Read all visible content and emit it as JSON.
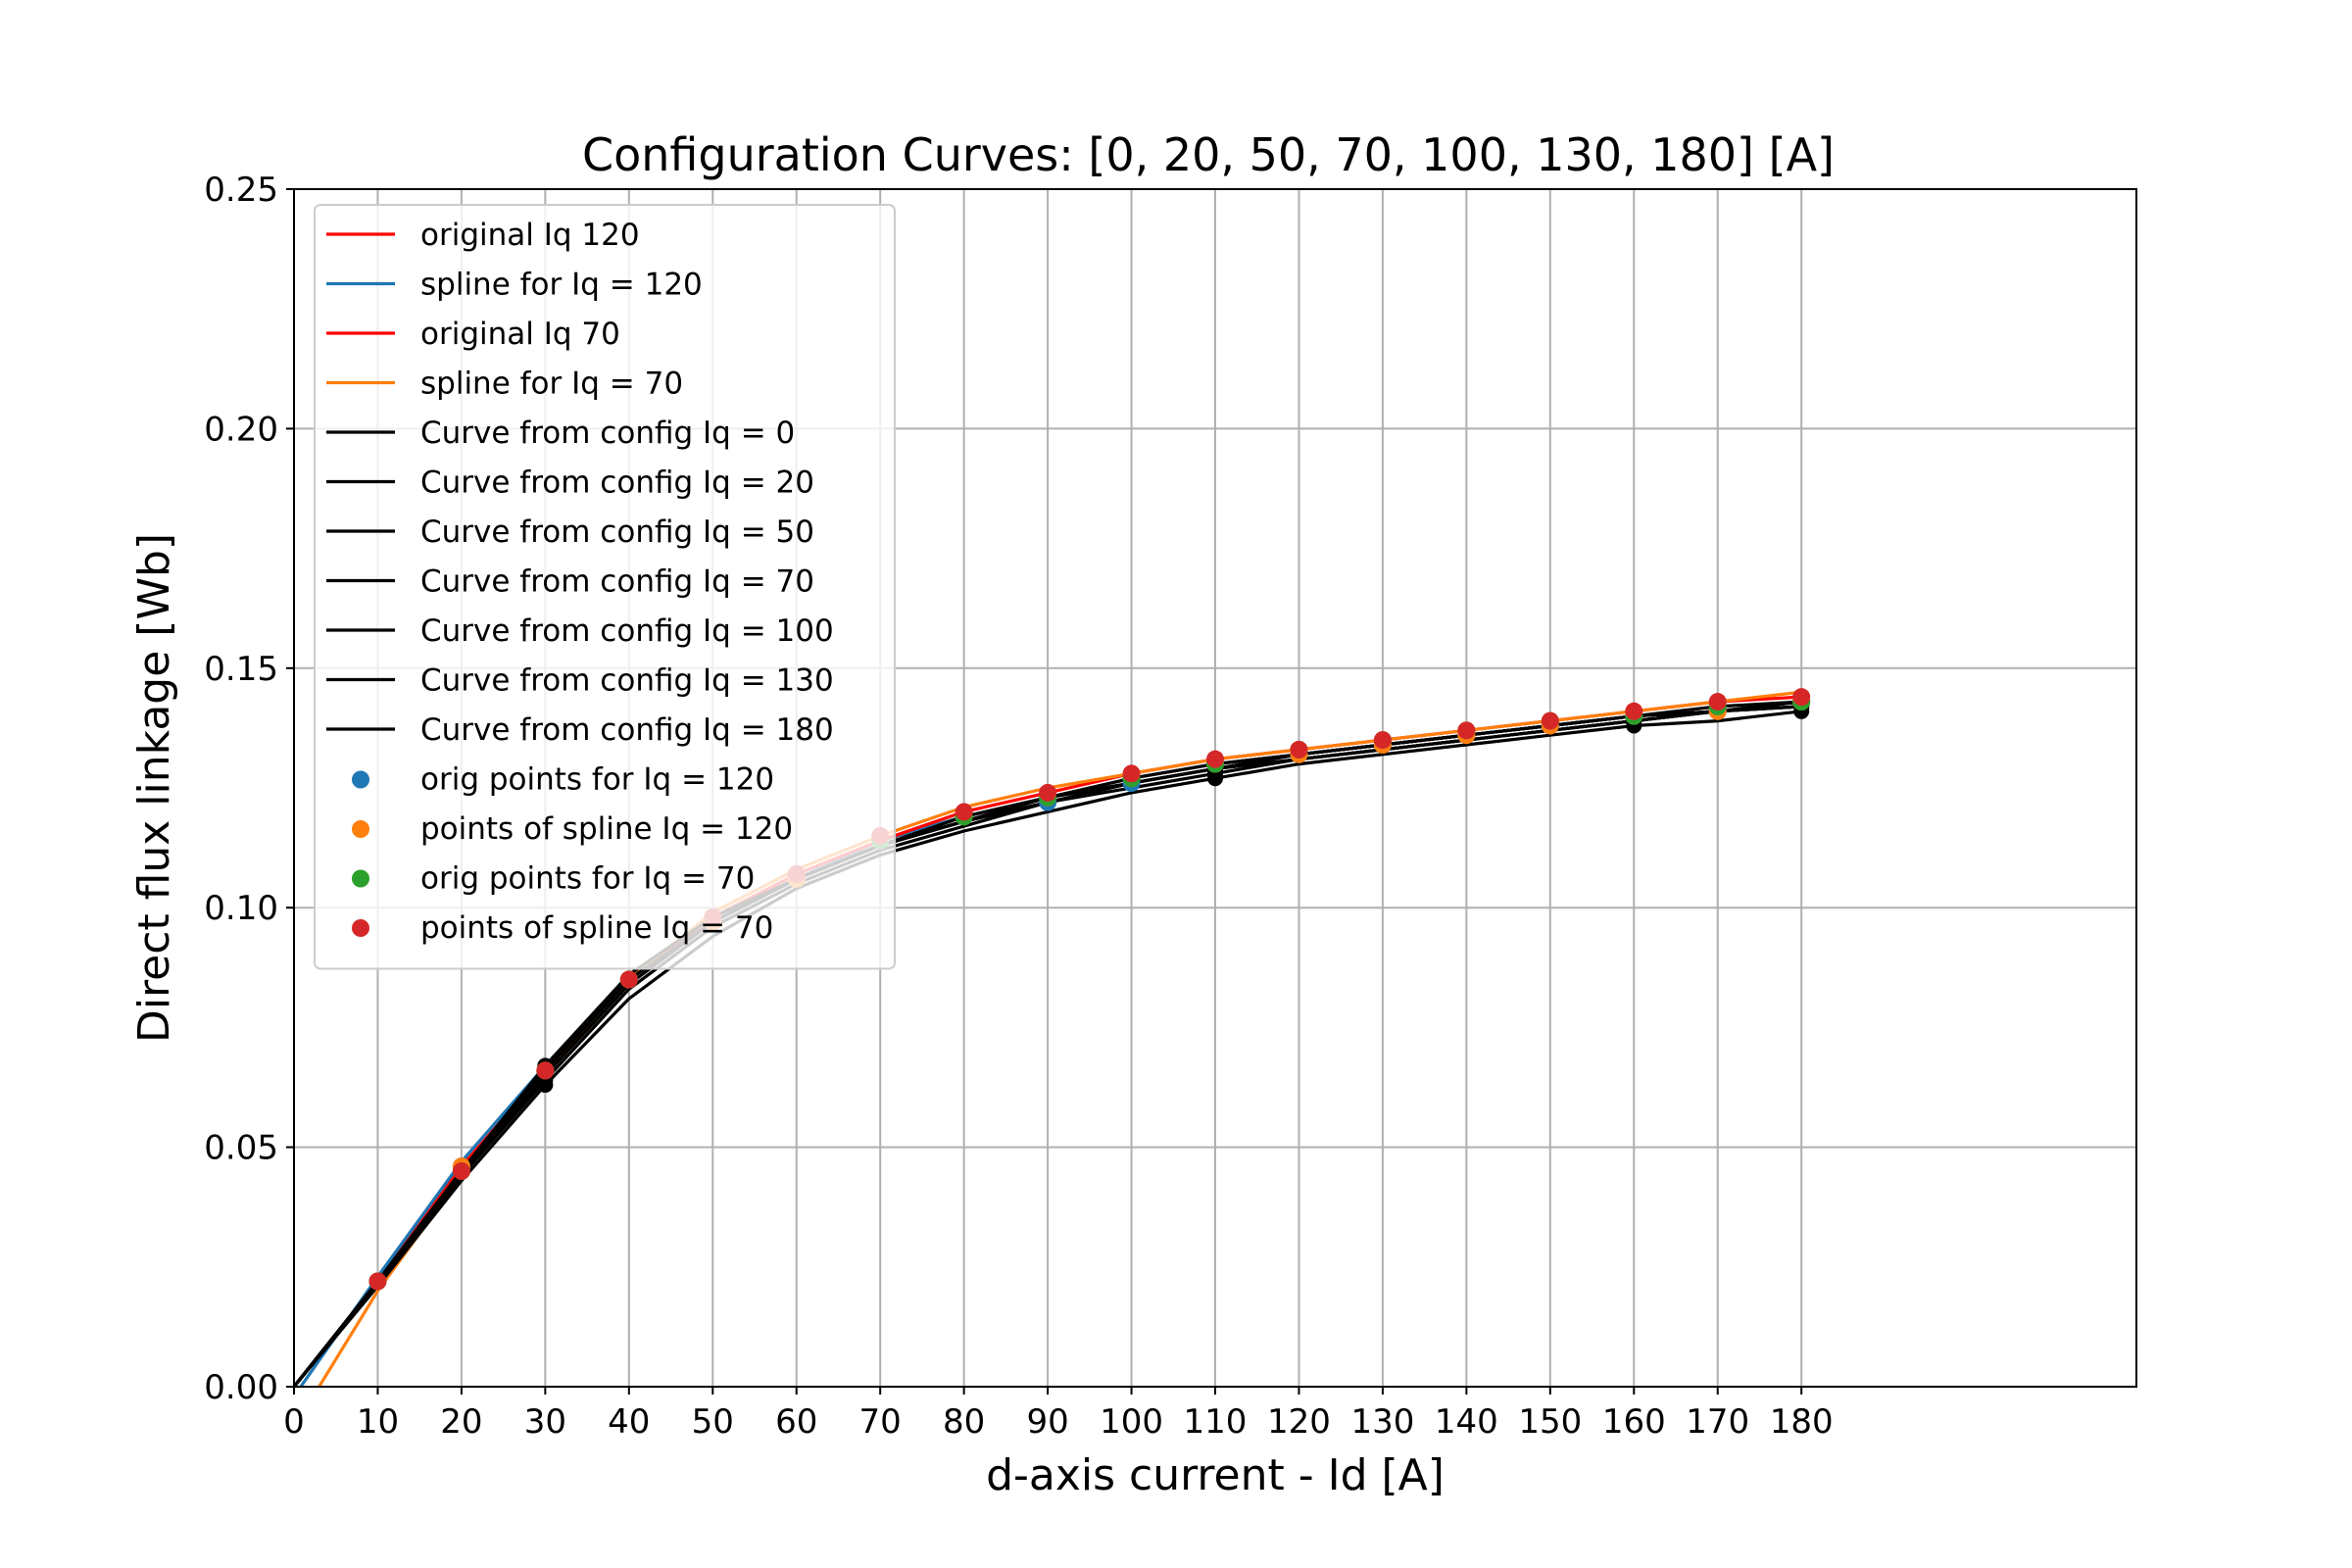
{
  "chart_data": {
    "type": "line",
    "title": "Configuration Curves: [0, 20, 50, 70, 100, 130, 180] [A]",
    "xlabel": "d-axis current - Id [A]",
    "ylabel": "Direct flux linkage [Wb]",
    "xlim": [
      0,
      220
    ],
    "ylim": [
      0,
      0.25
    ],
    "grid": true,
    "legend_position": "upper-left",
    "x_ticks": [
      0,
      10,
      20,
      30,
      40,
      50,
      60,
      70,
      80,
      90,
      100,
      110,
      120,
      130,
      140,
      150,
      160,
      170,
      180
    ],
    "x_tick_labels": [
      "0",
      "10",
      "20",
      "30",
      "40",
      "50",
      "60",
      "70",
      "80",
      "90",
      "100",
      "110",
      "120",
      "130",
      "140",
      "150",
      "160",
      "170",
      "180"
    ],
    "y_ticks": [
      0,
      0.05,
      0.1,
      0.15,
      0.2,
      0.25
    ],
    "y_tick_labels": [
      "0.00",
      "0.05",
      "0.10",
      "0.15",
      "0.20",
      "0.25"
    ],
    "series": [
      {
        "name": "original Iq  120",
        "color": "#ff0000",
        "type": "line",
        "x": [
          0,
          10,
          20,
          30,
          40,
          50,
          60,
          70,
          80,
          90,
          100,
          110,
          120,
          130,
          140,
          150,
          160,
          170,
          180
        ],
        "y": [
          0.0,
          0.022,
          0.046,
          0.066,
          0.085,
          0.097,
          0.106,
          0.114,
          0.119,
          0.123,
          0.127,
          0.13,
          0.132,
          0.134,
          0.136,
          0.138,
          0.14,
          0.141,
          0.143
        ]
      },
      {
        "name": "spline for Iq  = 120",
        "color": "#1f77b4",
        "type": "line",
        "x": [
          0,
          10,
          20,
          30,
          40,
          50,
          60,
          70,
          80,
          90,
          100,
          110,
          120,
          130,
          140,
          150,
          160,
          170,
          180
        ],
        "y": [
          -0.002,
          0.023,
          0.047,
          0.067,
          0.085,
          0.097,
          0.106,
          0.114,
          0.119,
          0.123,
          0.127,
          0.13,
          0.132,
          0.134,
          0.136,
          0.138,
          0.14,
          0.141,
          0.143
        ]
      },
      {
        "name": "original Iq  70",
        "color": "#ff0000",
        "type": "line",
        "x": [
          0,
          10,
          20,
          30,
          40,
          50,
          60,
          70,
          80,
          90,
          100,
          110,
          120,
          130,
          140,
          150,
          160,
          170,
          180
        ],
        "y": [
          0.0,
          0.022,
          0.045,
          0.066,
          0.085,
          0.098,
          0.107,
          0.114,
          0.12,
          0.124,
          0.128,
          0.131,
          0.133,
          0.135,
          0.137,
          0.139,
          0.141,
          0.143,
          0.144
        ]
      },
      {
        "name": "spline for Iq  = 70",
        "color": "#ff7f0e",
        "type": "line",
        "x": [
          3,
          10,
          20,
          30,
          40,
          50,
          60,
          70,
          80,
          90,
          100,
          110,
          120,
          130,
          140,
          150,
          160,
          170,
          180
        ],
        "y": [
          0.0,
          0.02,
          0.044,
          0.065,
          0.085,
          0.099,
          0.108,
          0.115,
          0.121,
          0.125,
          0.128,
          0.131,
          0.133,
          0.135,
          0.137,
          0.139,
          0.141,
          0.143,
          0.145
        ]
      },
      {
        "name": "Curve from config Iq  = 0",
        "color": "#000000",
        "type": "line",
        "x": [
          0,
          10,
          20,
          30,
          40,
          50,
          60,
          70,
          80,
          90,
          100,
          110,
          120,
          130,
          140,
          150,
          160,
          170,
          180
        ],
        "y": [
          0.0,
          0.022,
          0.045,
          0.067,
          0.086,
          0.098,
          0.106,
          0.113,
          0.118,
          0.122,
          0.126,
          0.129,
          0.131,
          0.133,
          0.135,
          0.137,
          0.139,
          0.141,
          0.142
        ]
      },
      {
        "name": "Curve from config Iq  = 20",
        "color": "#000000",
        "type": "line",
        "x": [
          0,
          10,
          20,
          30,
          40,
          50,
          60,
          70,
          80,
          90,
          100,
          110,
          120,
          130,
          140,
          150,
          160,
          170,
          180
        ],
        "y": [
          0.0,
          0.022,
          0.045,
          0.067,
          0.086,
          0.098,
          0.106,
          0.113,
          0.118,
          0.122,
          0.126,
          0.129,
          0.131,
          0.133,
          0.135,
          0.137,
          0.139,
          0.141,
          0.142
        ]
      },
      {
        "name": "Curve from config Iq  = 50",
        "color": "#000000",
        "type": "line",
        "x": [
          0,
          10,
          20,
          30,
          40,
          50,
          60,
          70,
          80,
          90,
          100,
          110,
          120,
          130,
          140,
          150,
          160,
          170,
          180
        ],
        "y": [
          0.0,
          0.022,
          0.045,
          0.066,
          0.085,
          0.097,
          0.106,
          0.113,
          0.118,
          0.123,
          0.126,
          0.129,
          0.132,
          0.134,
          0.136,
          0.138,
          0.14,
          0.141,
          0.143
        ]
      },
      {
        "name": "Curve from config Iq  = 70",
        "color": "#000000",
        "type": "line",
        "x": [
          0,
          10,
          20,
          30,
          40,
          50,
          60,
          70,
          80,
          90,
          100,
          110,
          120,
          130,
          140,
          150,
          160,
          170,
          180
        ],
        "y": [
          0.0,
          0.022,
          0.045,
          0.066,
          0.085,
          0.097,
          0.106,
          0.113,
          0.119,
          0.123,
          0.127,
          0.13,
          0.132,
          0.134,
          0.136,
          0.138,
          0.14,
          0.142,
          0.143
        ]
      },
      {
        "name": "Curve from config Iq  = 100",
        "color": "#000000",
        "type": "line",
        "x": [
          0,
          10,
          20,
          30,
          40,
          50,
          60,
          70,
          80,
          90,
          100,
          110,
          120,
          130,
          140,
          150,
          160,
          170,
          180
        ],
        "y": [
          0.0,
          0.022,
          0.044,
          0.065,
          0.084,
          0.097,
          0.106,
          0.113,
          0.118,
          0.123,
          0.126,
          0.129,
          0.132,
          0.134,
          0.136,
          0.138,
          0.14,
          0.141,
          0.143
        ]
      },
      {
        "name": "Curve from config Iq  = 130",
        "color": "#000000",
        "type": "line",
        "x": [
          0,
          10,
          20,
          30,
          40,
          50,
          60,
          70,
          80,
          90,
          100,
          110,
          120,
          130,
          140,
          150,
          160,
          170,
          180
        ],
        "y": [
          0.0,
          0.022,
          0.044,
          0.064,
          0.083,
          0.096,
          0.105,
          0.112,
          0.117,
          0.122,
          0.125,
          0.128,
          0.131,
          0.133,
          0.135,
          0.137,
          0.139,
          0.141,
          0.142
        ]
      },
      {
        "name": "Curve from config Iq  = 180",
        "color": "#000000",
        "type": "line",
        "x": [
          0,
          10,
          20,
          30,
          40,
          50,
          60,
          70,
          80,
          90,
          100,
          110,
          120,
          130,
          140,
          150,
          160,
          170,
          180
        ],
        "y": [
          0.0,
          0.021,
          0.043,
          0.063,
          0.081,
          0.094,
          0.104,
          0.111,
          0.116,
          0.12,
          0.124,
          0.127,
          0.13,
          0.132,
          0.134,
          0.136,
          0.138,
          0.139,
          0.141
        ]
      },
      {
        "name": "orig points for  Iq  = 120",
        "color": "#1f77b4",
        "type": "scatter",
        "x": [
          10,
          20,
          30,
          40,
          50,
          60,
          70,
          80,
          90,
          100,
          110,
          120,
          130,
          140,
          150,
          160,
          170,
          180
        ],
        "y": [
          0.022,
          0.046,
          0.066,
          0.085,
          0.097,
          0.106,
          0.114,
          0.119,
          0.122,
          0.126,
          0.13,
          0.132,
          0.134,
          0.136,
          0.138,
          0.14,
          0.141,
          0.143
        ]
      },
      {
        "name": "points of spline Iq  = 120",
        "color": "#ff7f0e",
        "type": "scatter",
        "x": [
          10,
          20,
          30,
          40,
          50,
          60,
          70,
          80,
          90,
          100,
          110,
          120,
          130,
          140,
          150,
          160,
          170,
          180
        ],
        "y": [
          0.022,
          0.046,
          0.066,
          0.085,
          0.097,
          0.106,
          0.114,
          0.119,
          0.123,
          0.127,
          0.13,
          0.132,
          0.134,
          0.136,
          0.138,
          0.14,
          0.141,
          0.143
        ]
      },
      {
        "name": "orig points for  Iq  = 70",
        "color": "#2ca02c",
        "type": "scatter",
        "x": [
          10,
          20,
          30,
          40,
          50,
          60,
          70,
          80,
          90,
          100,
          110,
          120,
          130,
          140,
          150,
          160,
          170,
          180
        ],
        "y": [
          0.022,
          0.045,
          0.066,
          0.085,
          0.098,
          0.107,
          0.114,
          0.119,
          0.123,
          0.127,
          0.13,
          0.133,
          0.135,
          0.137,
          0.139,
          0.14,
          0.142,
          0.143
        ]
      },
      {
        "name": "points of spline Iq  = 70",
        "color": "#d62728",
        "type": "scatter",
        "x": [
          10,
          20,
          30,
          40,
          50,
          60,
          70,
          80,
          90,
          100,
          110,
          120,
          130,
          140,
          150,
          160,
          170,
          180
        ],
        "y": [
          0.022,
          0.045,
          0.066,
          0.085,
          0.098,
          0.107,
          0.115,
          0.12,
          0.124,
          0.128,
          0.131,
          0.133,
          0.135,
          0.137,
          0.139,
          0.141,
          0.143,
          0.144
        ]
      }
    ]
  }
}
